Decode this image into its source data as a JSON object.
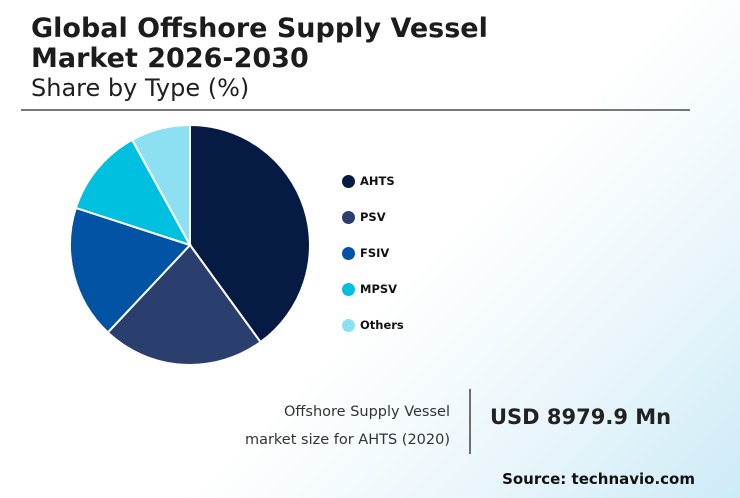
{
  "header": {
    "title_line1": "Global Offshore Supply Vessel",
    "title_line2": "Market 2026-2030",
    "subtitle": "Share by Type (%)"
  },
  "chart_data": {
    "type": "pie",
    "title": "Global Offshore Supply Vessel Market 2026-2030",
    "subtitle": "Share by Type (%)",
    "categories": [
      "AHTS",
      "PSV",
      "FSIV",
      "MPSV",
      "Others"
    ],
    "values": [
      40,
      22,
      18,
      12,
      8
    ],
    "colors": [
      "#061b44",
      "#2b3f6e",
      "#0353a4",
      "#00c0e0",
      "#8ce0f2"
    ],
    "legend_position": "right",
    "start_angle": "12 o'clock, clockwise"
  },
  "footer": {
    "caption_line1": "Offshore Supply Vessel",
    "caption_line2": "market size for AHTS (2020)",
    "value": "USD 8979.9 Mn",
    "source": "Source: technavio.com"
  }
}
